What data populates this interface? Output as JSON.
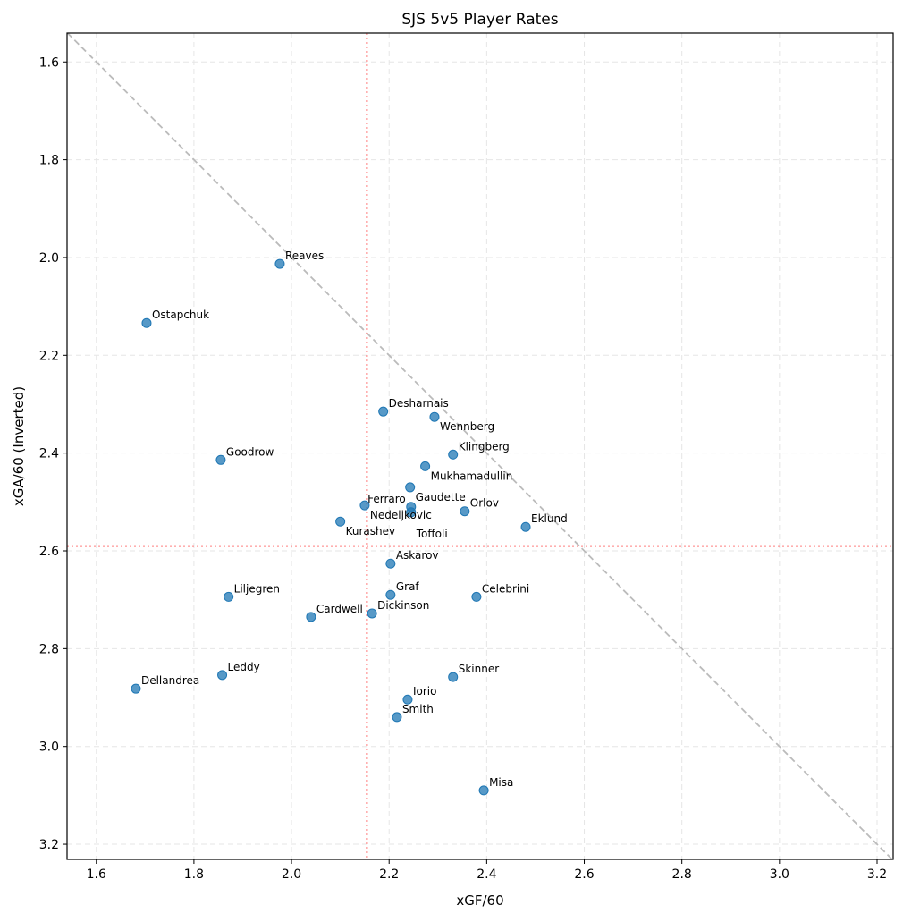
{
  "chart_data": {
    "type": "scatter",
    "title": "SJS 5v5 Player Rates",
    "xlabel": "xGF/60",
    "ylabel": "xGA/60 (Inverted)",
    "xlim": [
      1.54,
      3.233
    ],
    "ylim": [
      3.231,
      1.541
    ],
    "y_inverted": true,
    "grid": true,
    "xticks": [
      1.6,
      1.8,
      2.0,
      2.2,
      2.4,
      2.6,
      2.8,
      3.0,
      3.2
    ],
    "yticks": [
      1.6,
      1.8,
      2.0,
      2.2,
      2.4,
      2.6,
      2.8,
      3.0,
      3.2
    ],
    "point_color": "#1f77b4",
    "reference_line_color": "#ff7f7f",
    "diagonal_color": "#bbbbbb",
    "points": [
      {
        "label": "Reaves",
        "x": 1.976,
        "y": 2.013
      },
      {
        "label": "Ostapchuk",
        "x": 1.703,
        "y": 2.134
      },
      {
        "label": "Desharnais",
        "x": 2.188,
        "y": 2.315
      },
      {
        "label": "Wennberg",
        "x": 2.293,
        "y": 2.326
      },
      {
        "label": "Goodrow",
        "x": 1.855,
        "y": 2.414
      },
      {
        "label": "Klingberg",
        "x": 2.331,
        "y": 2.403
      },
      {
        "label": "Mukhamadullin",
        "x": 2.274,
        "y": 2.427
      },
      {
        "label": "Gaudette",
        "x": 2.243,
        "y": 2.47
      },
      {
        "label": "Nedeljkovic",
        "x": 2.15,
        "y": 2.507
      },
      {
        "label": "Ferraro",
        "x": 2.245,
        "y": 2.51
      },
      {
        "label": "Toffoli",
        "x": 2.245,
        "y": 2.521
      },
      {
        "label": "Orlov",
        "x": 2.355,
        "y": 2.519
      },
      {
        "label": "Kurashev",
        "x": 2.1,
        "y": 2.54
      },
      {
        "label": "Eklund",
        "x": 2.48,
        "y": 2.551
      },
      {
        "label": "Askarov",
        "x": 2.203,
        "y": 2.626
      },
      {
        "label": "Graf",
        "x": 2.203,
        "y": 2.69
      },
      {
        "label": "Celebrini",
        "x": 2.379,
        "y": 2.694
      },
      {
        "label": "Liljegren",
        "x": 1.871,
        "y": 2.694
      },
      {
        "label": "Cardwell",
        "x": 2.04,
        "y": 2.735
      },
      {
        "label": "Dickinson",
        "x": 2.165,
        "y": 2.728
      },
      {
        "label": "Leddy",
        "x": 1.858,
        "y": 2.854
      },
      {
        "label": "Dellandrea",
        "x": 1.681,
        "y": 2.882
      },
      {
        "label": "Skinner",
        "x": 2.331,
        "y": 2.858
      },
      {
        "label": "Iorio",
        "x": 2.238,
        "y": 2.904
      },
      {
        "label": "Smith",
        "x": 2.216,
        "y": 2.94
      },
      {
        "label": "Misa",
        "x": 2.394,
        "y": 3.09
      }
    ]
  }
}
